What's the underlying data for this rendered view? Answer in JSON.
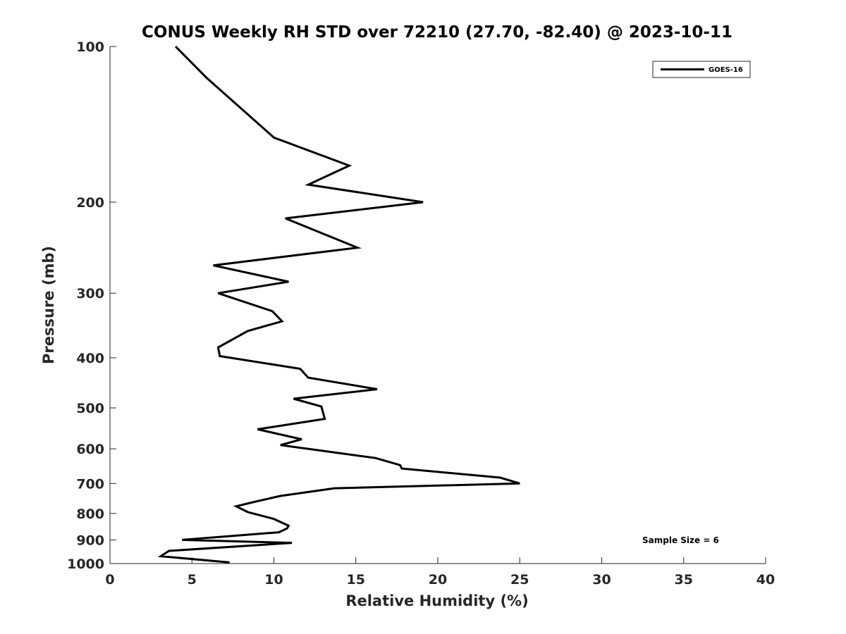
{
  "chart_data": {
    "type": "line",
    "title": "CONUS Weekly RH STD over 72210 (27.70, -82.40) @ 2023-10-11",
    "xlabel": "Relative Humidity (%)",
    "ylabel": "Pressure (mb)",
    "xlim": [
      0,
      40
    ],
    "ylim": [
      100,
      1000
    ],
    "yscale": "log",
    "yreversed": true,
    "xticks": [
      0,
      5,
      10,
      15,
      20,
      25,
      30,
      35,
      40
    ],
    "xtick_labels": [
      "0",
      "5",
      "10",
      "15",
      "20",
      "25",
      "30",
      "35",
      "40"
    ],
    "yticks": [
      100,
      200,
      300,
      400,
      500,
      600,
      700,
      800,
      900,
      1000
    ],
    "ytick_labels": [
      "100",
      "200",
      "300",
      "400",
      "500",
      "600",
      "700",
      "800",
      "900",
      "1000"
    ],
    "grid": false,
    "legend_position": "top-right",
    "series": [
      {
        "name": "GOES-16",
        "color": "#000000",
        "rh": [
          4.0,
          5.9,
          10.0,
          14.6,
          12.1,
          19.1,
          10.7,
          15.1,
          6.3,
          10.9,
          6.6,
          9.9,
          10.5,
          8.4,
          6.6,
          6.7,
          11.6,
          12.1,
          16.3,
          11.2,
          12.9,
          13.1,
          9.0,
          11.7,
          10.4,
          16.2,
          17.7,
          17.8,
          23.8,
          25.0,
          13.7,
          10.4,
          8.8,
          7.7,
          8.4,
          10.0,
          10.9,
          10.8,
          10.3,
          4.4,
          11.1,
          3.6,
          3.1,
          7.3
        ],
        "pressure": [
          100,
          115,
          150,
          170,
          185,
          200,
          215,
          245,
          265,
          285,
          300,
          325,
          340,
          355,
          382,
          397,
          420,
          437,
          460,
          480,
          497,
          525,
          550,
          575,
          590,
          625,
          645,
          655,
          682,
          700,
          715,
          740,
          760,
          775,
          795,
          820,
          845,
          855,
          870,
          900,
          912,
          945,
          968,
          995
        ]
      }
    ],
    "annotations": [
      "Sample Size = 6"
    ]
  }
}
